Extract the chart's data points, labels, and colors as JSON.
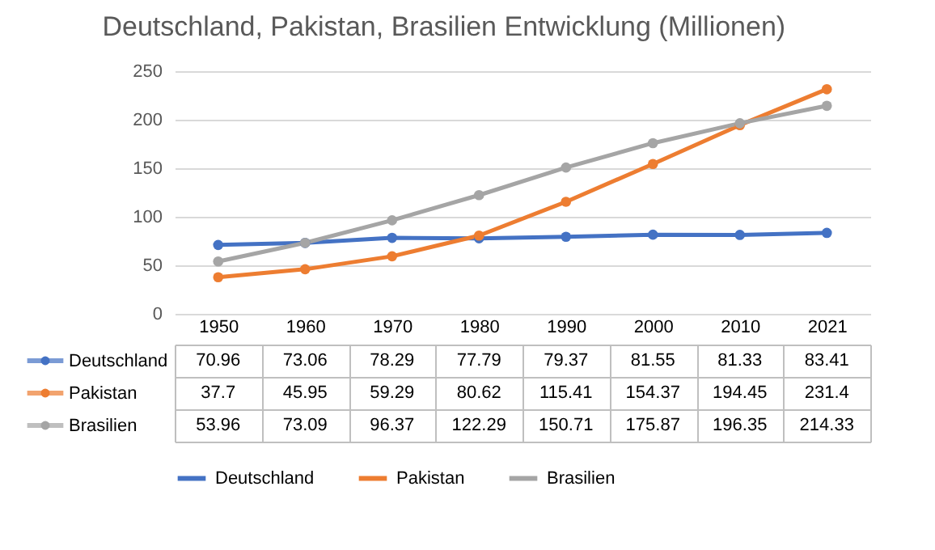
{
  "chart_data": {
    "type": "line",
    "title": "Deutschland, Pakistan, Brasilien Entwicklung (Millionen)",
    "categories": [
      "1950",
      "1960",
      "1970",
      "1980",
      "1990",
      "2000",
      "2010",
      "2021"
    ],
    "series": [
      {
        "name": "Deutschland",
        "color": "#4472c4",
        "values": [
          70.96,
          73.06,
          78.29,
          77.79,
          79.37,
          81.55,
          81.33,
          83.41
        ]
      },
      {
        "name": "Pakistan",
        "color": "#ed7d31",
        "values": [
          37.7,
          45.95,
          59.29,
          80.62,
          115.41,
          154.37,
          194.45,
          231.4
        ]
      },
      {
        "name": "Brasilien",
        "color": "#a5a5a5",
        "values": [
          53.96,
          73.09,
          96.37,
          122.29,
          150.71,
          175.87,
          196.35,
          214.33
        ]
      }
    ],
    "ylim": [
      0,
      250
    ],
    "yticks": [
      0,
      50,
      100,
      150,
      200,
      250
    ],
    "grid": "y",
    "legend": "bottom",
    "marker": "circle",
    "data_labels": true
  }
}
